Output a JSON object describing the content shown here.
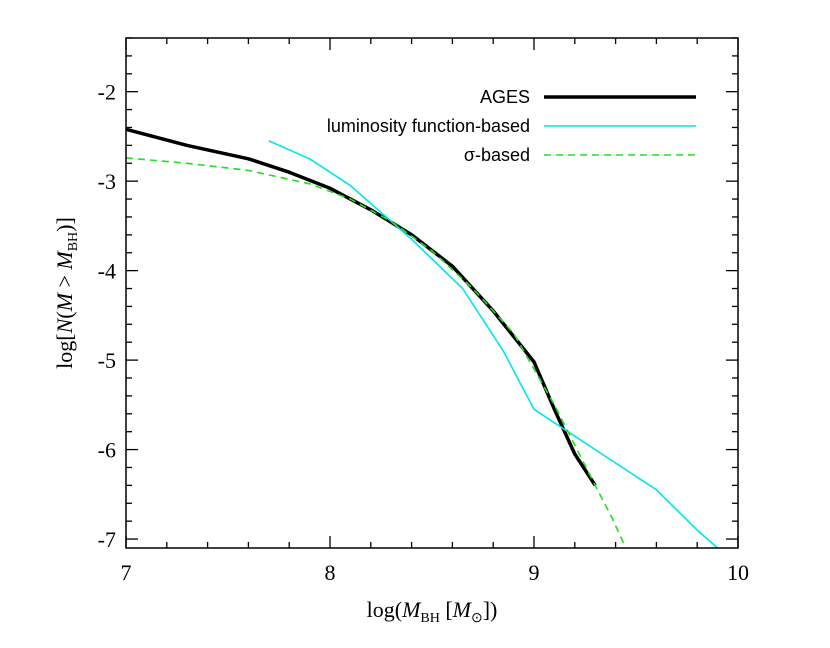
{
  "chart_data": {
    "type": "line",
    "xlabel": "log(M_BH [M_⊙])",
    "ylabel": "log[N(M > M_BH)]",
    "xlim": [
      7,
      10
    ],
    "ylim": [
      -7.1,
      -1.4
    ],
    "x_ticks": [
      7,
      8,
      9,
      10
    ],
    "x_tick_labels": [
      "7",
      "8",
      "9",
      "10"
    ],
    "y_ticks": [
      -2,
      -3,
      -4,
      -5,
      -6,
      -7
    ],
    "y_tick_labels": [
      "-2",
      "-3",
      "-4",
      "-5",
      "-6",
      "-7"
    ],
    "legend_placement": "top-right",
    "grid": false,
    "series": [
      {
        "name": "AGES",
        "color": "#000000",
        "style": "solid-thick",
        "x": [
          7.0,
          7.3,
          7.6,
          7.8,
          8.0,
          8.2,
          8.4,
          8.6,
          8.8,
          9.0,
          9.1,
          9.2,
          9.3
        ],
        "y": [
          -2.42,
          -2.6,
          -2.75,
          -2.9,
          -3.08,
          -3.32,
          -3.6,
          -3.95,
          -4.45,
          -5.02,
          -5.55,
          -6.05,
          -6.4
        ]
      },
      {
        "name": "luminosity function-based",
        "color": "#00e5ee",
        "style": "solid-thin",
        "x": [
          7.7,
          7.9,
          8.1,
          8.4,
          8.65,
          8.85,
          9.0,
          9.2,
          9.4,
          9.6,
          9.8,
          9.9
        ],
        "y": [
          -2.55,
          -2.75,
          -3.05,
          -3.65,
          -4.2,
          -4.9,
          -5.55,
          -5.85,
          -6.15,
          -6.45,
          -6.9,
          -7.1
        ]
      },
      {
        "name": "σ-based",
        "color": "#22dd22",
        "style": "dashed",
        "x": [
          7.0,
          7.3,
          7.6,
          7.9,
          8.1,
          8.3,
          8.5,
          8.7,
          8.9,
          9.1,
          9.2,
          9.3,
          9.38,
          9.45
        ],
        "y": [
          -2.74,
          -2.8,
          -2.88,
          -3.03,
          -3.2,
          -3.45,
          -3.78,
          -4.2,
          -4.7,
          -5.5,
          -5.95,
          -6.4,
          -6.75,
          -7.1
        ]
      }
    ]
  }
}
